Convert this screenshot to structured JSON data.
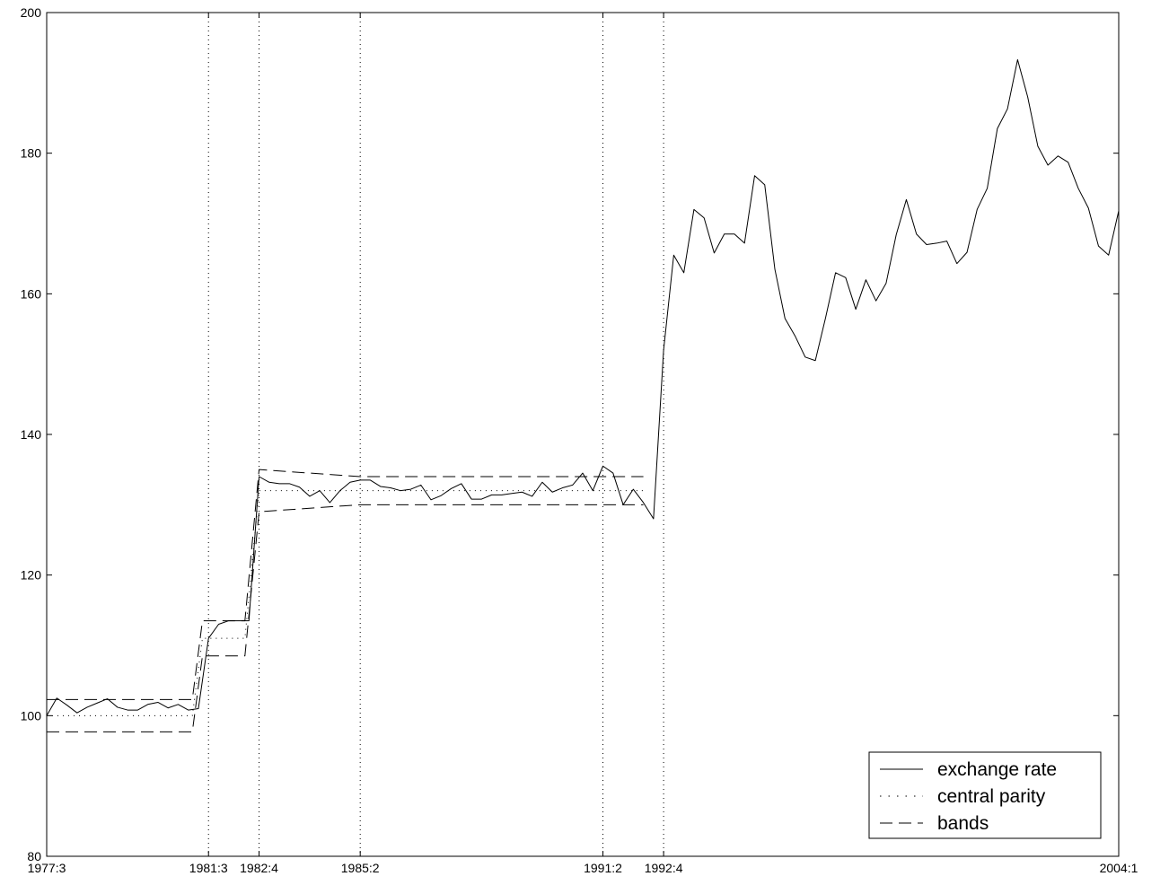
{
  "chart_data": {
    "type": "line",
    "title": "",
    "xlabel": "",
    "ylabel": "",
    "x_range": [
      1977.5,
      2004.0
    ],
    "ylim": [
      80,
      200
    ],
    "y_ticks": [
      80,
      100,
      120,
      140,
      160,
      180,
      200
    ],
    "x_ticks": [
      {
        "label": "1977:3",
        "x": 1977.5
      },
      {
        "label": "1981:3",
        "x": 1981.5
      },
      {
        "label": "1982:4",
        "x": 1982.75
      },
      {
        "label": "1985:2",
        "x": 1985.25
      },
      {
        "label": "1991:2",
        "x": 1991.25
      },
      {
        "label": "1992:4",
        "x": 1992.75
      },
      {
        "label": "2004:1",
        "x": 2004.0
      }
    ],
    "grid": "vertical dotted lines at marked regime dates",
    "legend": {
      "position": "bottom-right",
      "entries": [
        {
          "label": "exchange rate",
          "style": "solid"
        },
        {
          "label": "central parity",
          "style": "dotted"
        },
        {
          "label": "bands",
          "style": "dashed"
        }
      ]
    },
    "series": [
      {
        "name": "exchange rate",
        "style": "solid",
        "x": [
          1977.5,
          1977.75,
          1978.0,
          1978.25,
          1978.5,
          1978.75,
          1979.0,
          1979.25,
          1979.5,
          1979.75,
          1980.0,
          1980.25,
          1980.5,
          1980.75,
          1981.0,
          1981.25,
          1981.5,
          1981.75,
          1982.0,
          1982.25,
          1982.5,
          1982.75,
          1983.0,
          1983.25,
          1983.5,
          1983.75,
          1984.0,
          1984.25,
          1984.5,
          1984.75,
          1985.0,
          1985.25,
          1985.5,
          1985.75,
          1986.0,
          1986.25,
          1986.5,
          1986.75,
          1987.0,
          1987.25,
          1987.5,
          1987.75,
          1988.0,
          1988.25,
          1988.5,
          1988.75,
          1989.0,
          1989.25,
          1989.5,
          1989.75,
          1990.0,
          1990.25,
          1990.5,
          1990.75,
          1991.0,
          1991.25,
          1991.5,
          1991.75,
          1992.0,
          1992.25,
          1992.5,
          1992.75,
          1993.0,
          1993.25,
          1993.5,
          1993.75,
          1994.0,
          1994.25,
          1994.5,
          1994.75,
          1995.0,
          1995.25,
          1995.5,
          1995.75,
          1996.0,
          1996.25,
          1996.5,
          1996.75,
          1997.0,
          1997.25,
          1997.5,
          1997.75,
          1998.0,
          1998.25,
          1998.5,
          1998.75,
          1999.0,
          1999.25,
          1999.5,
          1999.75,
          2000.0,
          2000.25,
          2000.5,
          2000.75,
          2001.0,
          2001.25,
          2001.5,
          2001.75,
          2002.0,
          2002.25,
          2002.5,
          2002.75,
          2003.0,
          2003.25,
          2003.5,
          2003.75,
          2004.0
        ],
        "y": [
          100.0,
          102.5,
          101.5,
          100.4,
          101.2,
          101.8,
          102.4,
          101.2,
          100.8,
          100.8,
          101.6,
          101.9,
          101.1,
          101.6,
          100.8,
          101.0,
          111.0,
          113.0,
          113.5,
          113.5,
          113.5,
          134.0,
          133.2,
          133.0,
          133.0,
          132.5,
          131.2,
          132.0,
          130.3,
          132.0,
          133.2,
          133.5,
          133.5,
          132.6,
          132.4,
          132.0,
          132.2,
          132.8,
          130.7,
          131.3,
          132.3,
          133.0,
          130.8,
          130.8,
          131.4,
          131.4,
          131.6,
          131.8,
          131.2,
          133.2,
          131.8,
          132.4,
          132.8,
          134.5,
          132.0,
          135.5,
          134.5,
          130.0,
          132.2,
          130.3,
          128.0,
          152.0,
          165.5,
          163.0,
          172.0,
          170.8,
          165.8,
          168.5,
          168.5,
          167.2,
          176.8,
          175.5,
          163.5,
          156.5,
          154.0,
          151.0,
          150.5,
          156.5,
          163.0,
          162.3,
          157.8,
          162.0,
          159.0,
          161.5,
          168.4,
          173.4,
          168.5,
          167.0,
          167.2,
          167.5,
          164.3,
          165.9,
          172.0,
          175.0,
          183.5,
          186.3,
          193.3,
          188.0,
          181.0,
          178.3,
          179.6,
          178.7,
          175.0,
          172.2,
          166.8,
          165.5,
          171.8
        ]
      },
      {
        "name": "central parity",
        "style": "dotted",
        "x": [
          1977.5,
          1981.1,
          1981.35,
          1982.0,
          1982.4,
          1982.75,
          1985.25,
          1992.25
        ],
        "y": [
          100.0,
          100.0,
          111.0,
          111.0,
          111.0,
          132.0,
          132.0,
          132.0
        ]
      },
      {
        "name": "bands (upper)",
        "style": "dashed",
        "x": [
          1977.5,
          1981.1,
          1981.35,
          1982.0,
          1982.4,
          1982.75,
          1985.25,
          1992.25
        ],
        "y": [
          102.3,
          102.3,
          113.5,
          113.5,
          113.5,
          135.0,
          134.0,
          134.0
        ]
      },
      {
        "name": "bands (lower)",
        "style": "dashed",
        "x": [
          1977.5,
          1981.1,
          1981.35,
          1982.0,
          1982.4,
          1982.75,
          1985.25,
          1992.25
        ],
        "y": [
          97.7,
          97.7,
          108.5,
          108.5,
          108.5,
          129.0,
          130.0,
          130.0
        ]
      }
    ]
  }
}
